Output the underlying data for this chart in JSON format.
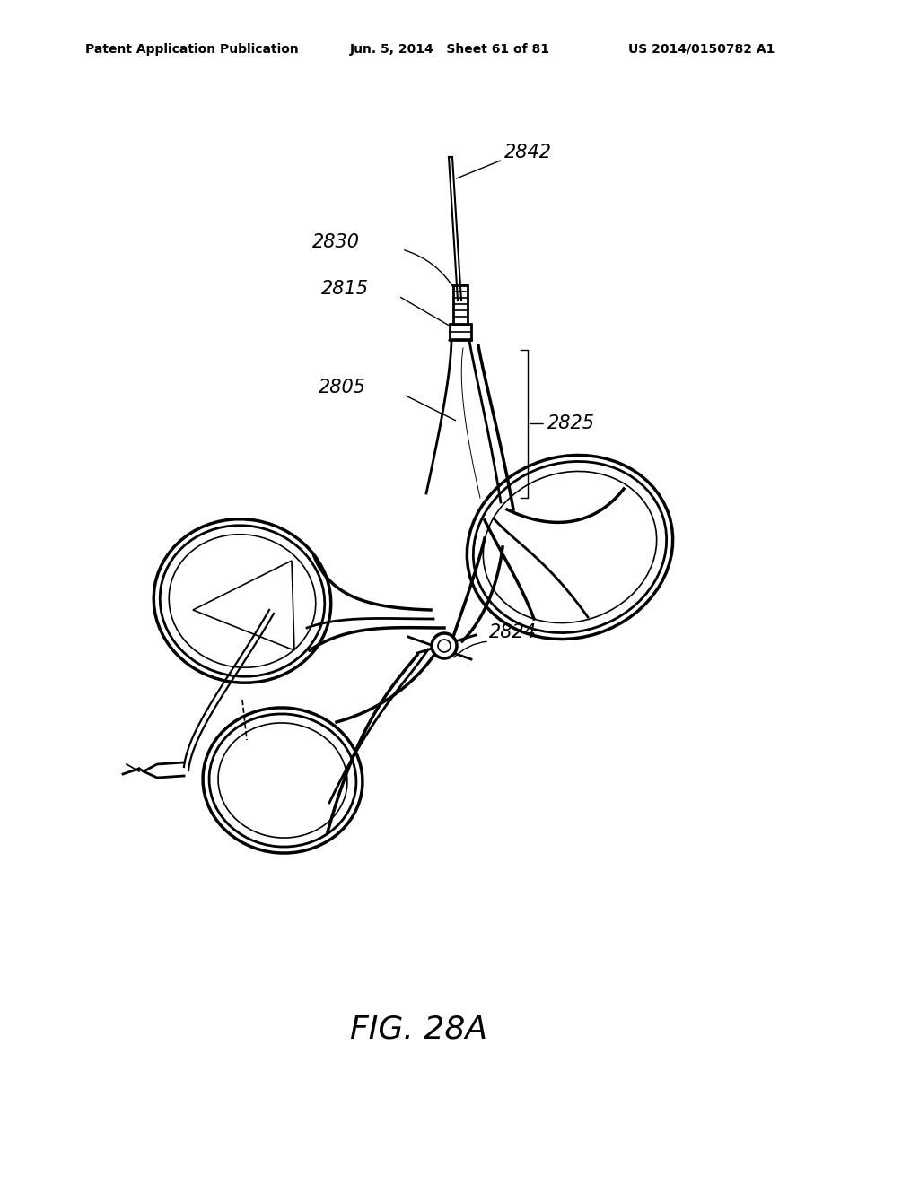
{
  "background_color": "#ffffff",
  "line_color": "#000000",
  "header_left": "Patent Application Publication",
  "header_mid": "Jun. 5, 2014   Sheet 61 of 81",
  "header_right": "US 2014/0150782 A1",
  "figure_label": "FIG. 28A",
  "label_2842": "2842",
  "label_2830": "2830",
  "label_2815": "2815",
  "label_2825": "2825",
  "label_2805": "2805",
  "label_2824": "2824"
}
